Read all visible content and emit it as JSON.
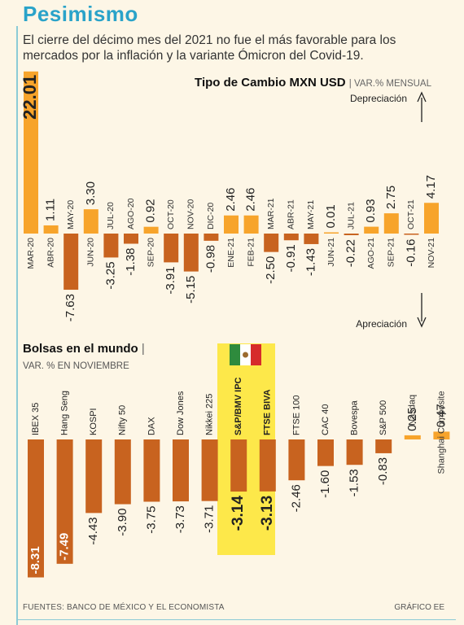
{
  "header": {
    "title": "Pesimismo",
    "subtitle": "El cierre del décimo mes del 2021 no fue el más favorable para los mercados por la inflación y la variante Ómicron del Covid-19."
  },
  "fx_section": {
    "title": "Tipo de Cambio MXN USD",
    "unit": "VAR.% MENSUAL",
    "up_label": "Depreciación",
    "down_label": "Apreciación"
  },
  "stocks_section": {
    "title": "Bolsas en el mundo",
    "unit": "VAR. % EN NOVIEMBRE"
  },
  "footer": {
    "source": "FUENTES: BANCO DE MÉXICO Y EL ECONOMISTA",
    "credit": "GRÁFICO EE"
  },
  "colors": {
    "positive": "#f7a42b",
    "negative": "#c8631f",
    "highlight": "#fde84a",
    "title": "#2aa3c9"
  },
  "chart_data": [
    {
      "type": "bar",
      "title": "Tipo de Cambio MXN USD",
      "ylabel": "VAR.% MENSUAL",
      "categories": [
        "MAR-20",
        "ABR-20",
        "MAY-20",
        "JUN-20",
        "JUL-20",
        "AGO-20",
        "SEP-20",
        "OCT-20",
        "NOV-20",
        "DIC-20",
        "ENE-21",
        "FEB-21",
        "MAR-21",
        "ABR-21",
        "MAY-21",
        "JUN-21",
        "JUL-21",
        "AGO-21",
        "SEP-21",
        "OCT-21",
        "NOV-21"
      ],
      "values": [
        22.01,
        1.11,
        -7.63,
        3.3,
        -3.25,
        -1.38,
        0.92,
        -3.91,
        -5.15,
        -0.98,
        2.46,
        2.46,
        -2.5,
        -0.91,
        -1.43,
        0.01,
        -0.22,
        0.93,
        2.75,
        -0.16,
        4.17
      ],
      "labels": [
        "22.01",
        "1.11",
        "-7.63",
        "3.30",
        "-3.25",
        "-1.38",
        "0.92",
        "-3.91",
        "-5.15",
        "-0.98",
        "2.46",
        "2.46",
        "-2.50",
        "-0.91",
        "-1.43",
        "0.01",
        "-0.22",
        "0.93",
        "2.75",
        "-0.16",
        "4.17"
      ]
    },
    {
      "type": "bar",
      "title": "Bolsas en el mundo",
      "ylabel": "VAR. % EN NOVIEMBRE",
      "categories": [
        "IBEX 35",
        "Hang Seng",
        "KOSPI",
        "Nifty 50",
        "DAX",
        "Dow Jones",
        "Nikkei 225",
        "S&P/BMV IPC",
        "FTSE BIVA",
        "FTSE 100",
        "CAC 40",
        "Bovespa",
        "S&P 500",
        "Nasdaq",
        "Shanghai Composite"
      ],
      "values": [
        -8.31,
        -7.49,
        -4.43,
        -3.9,
        -3.75,
        -3.73,
        -3.71,
        -3.14,
        -3.13,
        -2.46,
        -1.6,
        -1.53,
        -0.83,
        0.25,
        0.47
      ],
      "labels": [
        "-8.31",
        "-7.49",
        "-4.43",
        "-3.90",
        "-3.75",
        "-3.73",
        "-3.71",
        "-3.14",
        "-3.13",
        "-2.46",
        "-1.60",
        "-1.53",
        "-0.83",
        "0.25",
        "0.47"
      ],
      "highlighted": [
        "S&P/BMV IPC",
        "FTSE BIVA"
      ]
    }
  ]
}
